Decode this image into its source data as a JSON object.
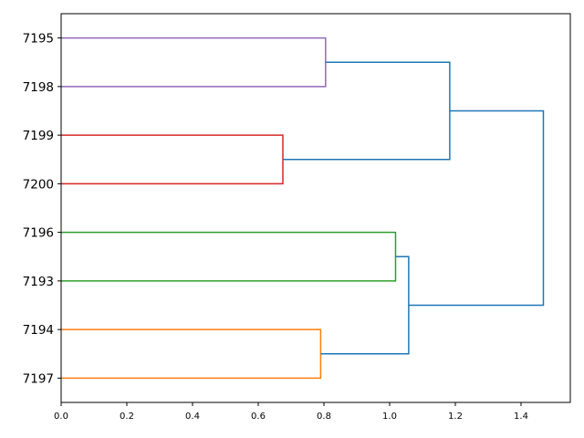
{
  "chart_data": {
    "type": "dendrogram",
    "orientation": "right",
    "title": "",
    "xlabel": "",
    "ylabel": "",
    "xlim": [
      0,
      1.55
    ],
    "xticks": [
      0.0,
      0.2,
      0.4,
      0.6,
      0.8,
      1.0,
      1.2,
      1.4
    ],
    "xtick_labels": [
      "0.0",
      "0.2",
      "0.4",
      "0.6",
      "0.8",
      "1.0",
      "1.2",
      "1.4"
    ],
    "leaves": [
      "7195",
      "7198",
      "7199",
      "7200",
      "7196",
      "7193",
      "7194",
      "7197"
    ],
    "links": [
      {
        "children": [
          "7195",
          "7198"
        ],
        "height": 0.805,
        "color": "#9467bd"
      },
      {
        "children": [
          "7199",
          "7200"
        ],
        "height": 0.675,
        "color": "#d62728"
      },
      {
        "children": [
          "7196",
          "7193"
        ],
        "height": 1.018,
        "color": "#2ca02c"
      },
      {
        "children": [
          "7194",
          "7197"
        ],
        "height": 0.79,
        "color": "#ff7f0e"
      },
      {
        "children": [
          [
            "7195",
            "7198"
          ],
          [
            "7199",
            "7200"
          ]
        ],
        "height": 1.183,
        "color": "#1f77b4"
      },
      {
        "children": [
          [
            "7196",
            "7193"
          ],
          [
            "7194",
            "7197"
          ]
        ],
        "height": 1.058,
        "color": "#1f77b4"
      },
      {
        "children": [
          [
            "7195",
            "7198",
            "7199",
            "7200"
          ],
          [
            "7196",
            "7193",
            "7194",
            "7197"
          ]
        ],
        "height": 1.468,
        "color": "#1f77b4"
      }
    ],
    "grid": false,
    "legend": "none"
  }
}
